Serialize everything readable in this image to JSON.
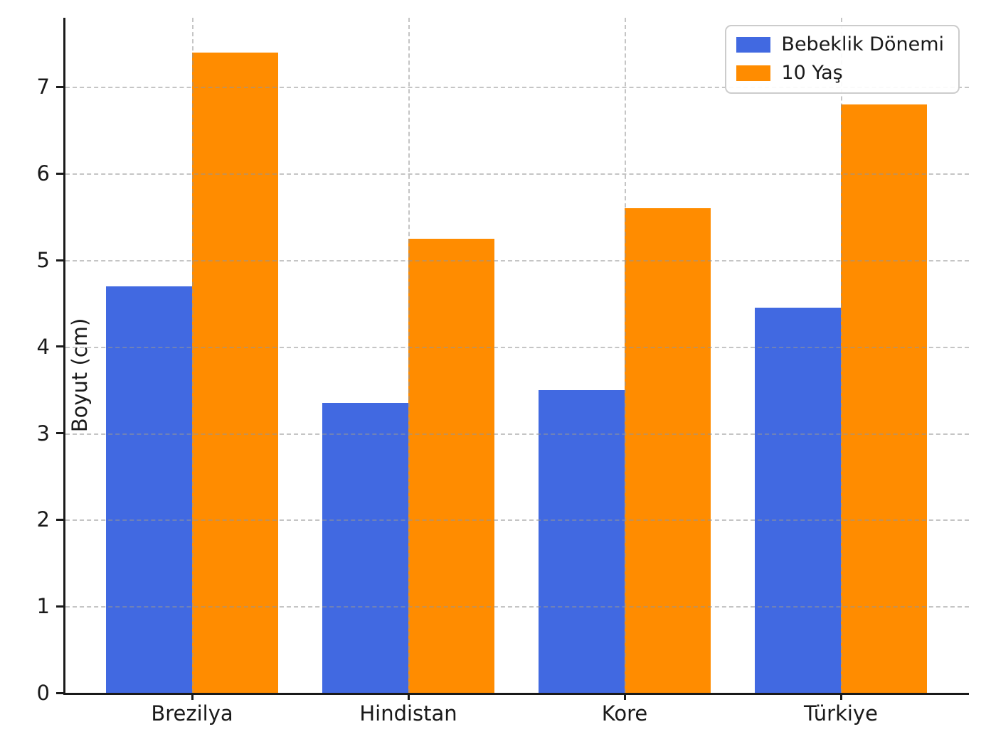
{
  "figure": {
    "background": "#ffffff",
    "text_color": "#1a1a1a",
    "grid_color": "#bfbfbf",
    "axis_color": "#1a1a1a"
  },
  "chart_data": {
    "type": "bar",
    "title": "",
    "xlabel": "",
    "ylabel": "Boyut (cm)",
    "categories": [
      "Brezilya",
      "Hindistan",
      "Kore",
      "Türkiye"
    ],
    "series": [
      {
        "name": "Bebeklik Dönemi",
        "color": "#4169E1",
        "values": [
          4.7,
          3.35,
          3.5,
          4.45
        ]
      },
      {
        "name": "10 Yaş",
        "color": "#FF8C00",
        "values": [
          7.4,
          5.25,
          5.6,
          6.8
        ]
      }
    ],
    "ylim": [
      0,
      7.8
    ],
    "yticks": [
      0,
      1,
      2,
      3,
      4,
      5,
      6,
      7
    ],
    "grid": true,
    "grid_style": "dashed",
    "legend_position": "upper right"
  }
}
